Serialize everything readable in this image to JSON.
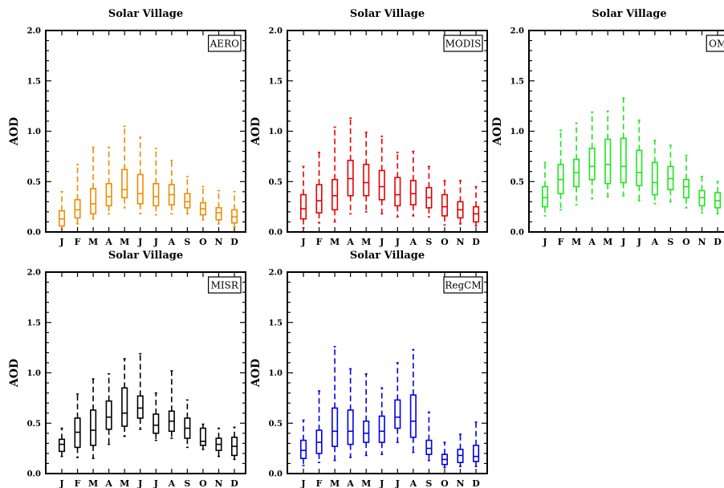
{
  "chart_data": [
    {
      "type": "box",
      "title": "Solar Village",
      "ylabel": "AOD",
      "legend": "AERO",
      "legend_position": "top-right",
      "color": "#f08c00",
      "ylim": [
        0,
        2.0
      ],
      "yticks": [
        "0.0",
        "0.5",
        "1.0",
        "1.5",
        "2.0"
      ],
      "categories": [
        "J",
        "F",
        "M",
        "A",
        "M",
        "J",
        "J",
        "A",
        "S",
        "O",
        "N",
        "D"
      ],
      "boxes": [
        {
          "whislo": 0.04,
          "q1": 0.06,
          "med": 0.13,
          "q3": 0.21,
          "whishi": 0.4
        },
        {
          "whislo": 0.08,
          "q1": 0.14,
          "med": 0.22,
          "q3": 0.32,
          "whishi": 0.67
        },
        {
          "whislo": 0.13,
          "q1": 0.18,
          "med": 0.28,
          "q3": 0.43,
          "whishi": 0.84
        },
        {
          "whislo": 0.18,
          "q1": 0.26,
          "med": 0.35,
          "q3": 0.48,
          "whishi": 0.84
        },
        {
          "whislo": 0.24,
          "q1": 0.34,
          "med": 0.42,
          "q3": 0.62,
          "whishi": 1.05
        },
        {
          "whislo": 0.18,
          "q1": 0.28,
          "med": 0.38,
          "q3": 0.57,
          "whishi": 0.94
        },
        {
          "whislo": 0.17,
          "q1": 0.26,
          "med": 0.35,
          "q3": 0.48,
          "whishi": 0.83
        },
        {
          "whislo": 0.18,
          "q1": 0.27,
          "med": 0.37,
          "q3": 0.47,
          "whishi": 0.71
        },
        {
          "whislo": 0.18,
          "q1": 0.24,
          "med": 0.3,
          "q3": 0.38,
          "whishi": 0.55
        },
        {
          "whislo": 0.12,
          "q1": 0.17,
          "med": 0.23,
          "q3": 0.29,
          "whishi": 0.45
        },
        {
          "whislo": 0.08,
          "q1": 0.12,
          "med": 0.19,
          "q3": 0.24,
          "whishi": 0.41
        },
        {
          "whislo": 0.05,
          "q1": 0.09,
          "med": 0.15,
          "q3": 0.22,
          "whishi": 0.4
        }
      ]
    },
    {
      "type": "box",
      "title": "Solar Village",
      "ylabel": "AOD",
      "legend": "MODIS",
      "legend_position": "top-right",
      "color": "#e60000",
      "ylim": [
        0,
        2.0
      ],
      "yticks": [
        "0.0",
        "0.5",
        "1.0",
        "1.5",
        "2.0"
      ],
      "categories": [
        "J",
        "F",
        "M",
        "A",
        "M",
        "J",
        "J",
        "A",
        "S",
        "O",
        "N",
        "D"
      ],
      "boxes": [
        {
          "whislo": 0.04,
          "q1": 0.13,
          "med": 0.23,
          "q3": 0.37,
          "whishi": 0.65
        },
        {
          "whislo": 0.09,
          "q1": 0.19,
          "med": 0.31,
          "q3": 0.47,
          "whishi": 0.79
        },
        {
          "whislo": 0.1,
          "q1": 0.22,
          "med": 0.36,
          "q3": 0.52,
          "whishi": 1.04
        },
        {
          "whislo": 0.18,
          "q1": 0.36,
          "med": 0.53,
          "q3": 0.71,
          "whishi": 1.13
        },
        {
          "whislo": 0.2,
          "q1": 0.36,
          "med": 0.49,
          "q3": 0.67,
          "whishi": 0.99
        },
        {
          "whislo": 0.18,
          "q1": 0.32,
          "med": 0.45,
          "q3": 0.61,
          "whishi": 0.95
        },
        {
          "whislo": 0.15,
          "q1": 0.26,
          "med": 0.37,
          "q3": 0.54,
          "whishi": 0.79
        },
        {
          "whislo": 0.16,
          "q1": 0.27,
          "med": 0.38,
          "q3": 0.51,
          "whishi": 0.8
        },
        {
          "whislo": 0.15,
          "q1": 0.24,
          "med": 0.34,
          "q3": 0.44,
          "whishi": 0.65
        },
        {
          "whislo": 0.07,
          "q1": 0.16,
          "med": 0.25,
          "q3": 0.37,
          "whishi": 0.51
        },
        {
          "whislo": 0.08,
          "q1": 0.14,
          "med": 0.22,
          "q3": 0.3,
          "whishi": 0.51
        },
        {
          "whislo": 0.06,
          "q1": 0.1,
          "med": 0.18,
          "q3": 0.25,
          "whishi": 0.45
        }
      ]
    },
    {
      "type": "box",
      "title": "Solar Village",
      "ylabel": "AOD",
      "legend": "OMI",
      "legend_position": "top-right",
      "color": "#1fe61f",
      "ylim": [
        0,
        2.0
      ],
      "yticks": [
        "0.0",
        "0.5",
        "1.0",
        "1.5",
        "2.0"
      ],
      "categories": [
        "J",
        "F",
        "M",
        "A",
        "M",
        "J",
        "J",
        "A",
        "S",
        "O",
        "N",
        "D"
      ],
      "boxes": [
        {
          "whislo": 0.16,
          "q1": 0.25,
          "med": 0.34,
          "q3": 0.45,
          "whishi": 0.69
        },
        {
          "whislo": 0.22,
          "q1": 0.38,
          "med": 0.52,
          "q3": 0.67,
          "whishi": 1.01
        },
        {
          "whislo": 0.27,
          "q1": 0.45,
          "med": 0.59,
          "q3": 0.72,
          "whishi": 1.08
        },
        {
          "whislo": 0.33,
          "q1": 0.52,
          "med": 0.65,
          "q3": 0.83,
          "whishi": 1.19
        },
        {
          "whislo": 0.35,
          "q1": 0.48,
          "med": 0.67,
          "q3": 0.92,
          "whishi": 1.2
        },
        {
          "whislo": 0.36,
          "q1": 0.49,
          "med": 0.65,
          "q3": 0.93,
          "whishi": 1.33
        },
        {
          "whislo": 0.31,
          "q1": 0.46,
          "med": 0.59,
          "q3": 0.81,
          "whishi": 1.11
        },
        {
          "whislo": 0.28,
          "q1": 0.37,
          "med": 0.49,
          "q3": 0.69,
          "whishi": 0.91
        },
        {
          "whislo": 0.3,
          "q1": 0.42,
          "med": 0.53,
          "q3": 0.65,
          "whishi": 0.86
        },
        {
          "whislo": 0.24,
          "q1": 0.34,
          "med": 0.45,
          "q3": 0.52,
          "whishi": 0.76
        },
        {
          "whislo": 0.19,
          "q1": 0.26,
          "med": 0.34,
          "q3": 0.41,
          "whishi": 0.55
        },
        {
          "whislo": 0.18,
          "q1": 0.24,
          "med": 0.31,
          "q3": 0.39,
          "whishi": 0.5
        }
      ]
    },
    {
      "type": "box",
      "title": "Solar Village",
      "ylabel": "AOD",
      "legend": "MISR",
      "legend_position": "top-right",
      "color": "#000000",
      "ylim": [
        0,
        2.0
      ],
      "yticks": [
        "0.0",
        "0.5",
        "1.0",
        "1.5",
        "2.0"
      ],
      "categories": [
        "J",
        "F",
        "M",
        "A",
        "M",
        "J",
        "J",
        "A",
        "S",
        "O",
        "N",
        "D"
      ],
      "boxes": [
        {
          "whislo": 0.17,
          "q1": 0.22,
          "med": 0.29,
          "q3": 0.34,
          "whishi": 0.45
        },
        {
          "whislo": 0.16,
          "q1": 0.26,
          "med": 0.41,
          "q3": 0.55,
          "whishi": 0.79
        },
        {
          "whislo": 0.15,
          "q1": 0.28,
          "med": 0.43,
          "q3": 0.63,
          "whishi": 0.94
        },
        {
          "whislo": 0.29,
          "q1": 0.44,
          "med": 0.56,
          "q3": 0.72,
          "whishi": 0.99
        },
        {
          "whislo": 0.37,
          "q1": 0.47,
          "med": 0.6,
          "q3": 0.85,
          "whishi": 1.14
        },
        {
          "whislo": 0.44,
          "q1": 0.55,
          "med": 0.65,
          "q3": 0.77,
          "whishi": 1.19
        },
        {
          "whislo": 0.33,
          "q1": 0.4,
          "med": 0.48,
          "q3": 0.59,
          "whishi": 0.8
        },
        {
          "whislo": 0.35,
          "q1": 0.42,
          "med": 0.52,
          "q3": 0.62,
          "whishi": 1.02
        },
        {
          "whislo": 0.26,
          "q1": 0.35,
          "med": 0.45,
          "q3": 0.55,
          "whishi": 0.73
        },
        {
          "whislo": 0.24,
          "q1": 0.28,
          "med": 0.32,
          "q3": 0.45,
          "whishi": 0.49
        },
        {
          "whislo": 0.17,
          "q1": 0.23,
          "med": 0.29,
          "q3": 0.35,
          "whishi": 0.45
        },
        {
          "whislo": 0.14,
          "q1": 0.18,
          "med": 0.27,
          "q3": 0.36,
          "whishi": 0.46
        }
      ]
    },
    {
      "type": "box",
      "title": "Solar Village",
      "ylabel": "AOD",
      "legend": "RegCM",
      "legend_position": "top-right",
      "color": "#0000e6",
      "ylim": [
        0,
        2.0
      ],
      "yticks": [
        "0.0",
        "0.5",
        "1.0",
        "1.5",
        "2.0"
      ],
      "categories": [
        "J",
        "F",
        "M",
        "A",
        "M",
        "J",
        "J",
        "A",
        "S",
        "O",
        "N",
        "D"
      ],
      "boxes": [
        {
          "whislo": 0.08,
          "q1": 0.15,
          "med": 0.23,
          "q3": 0.33,
          "whishi": 0.53
        },
        {
          "whislo": 0.11,
          "q1": 0.2,
          "med": 0.31,
          "q3": 0.43,
          "whishi": 0.82
        },
        {
          "whislo": 0.13,
          "q1": 0.27,
          "med": 0.42,
          "q3": 0.65,
          "whishi": 1.26
        },
        {
          "whislo": 0.16,
          "q1": 0.29,
          "med": 0.42,
          "q3": 0.63,
          "whishi": 1.04
        },
        {
          "whislo": 0.18,
          "q1": 0.31,
          "med": 0.4,
          "q3": 0.52,
          "whishi": 0.99
        },
        {
          "whislo": 0.19,
          "q1": 0.31,
          "med": 0.42,
          "q3": 0.57,
          "whishi": 0.85
        },
        {
          "whislo": 0.31,
          "q1": 0.45,
          "med": 0.56,
          "q3": 0.73,
          "whishi": 1.1
        },
        {
          "whislo": 0.21,
          "q1": 0.36,
          "med": 0.52,
          "q3": 0.78,
          "whishi": 1.23
        },
        {
          "whislo": 0.13,
          "q1": 0.19,
          "med": 0.25,
          "q3": 0.33,
          "whishi": 0.61
        },
        {
          "whislo": 0.06,
          "q1": 0.09,
          "med": 0.14,
          "q3": 0.19,
          "whishi": 0.31
        },
        {
          "whislo": 0.07,
          "q1": 0.11,
          "med": 0.18,
          "q3": 0.24,
          "whishi": 0.39
        },
        {
          "whislo": 0.07,
          "q1": 0.12,
          "med": 0.17,
          "q3": 0.28,
          "whishi": 0.51
        }
      ]
    }
  ]
}
